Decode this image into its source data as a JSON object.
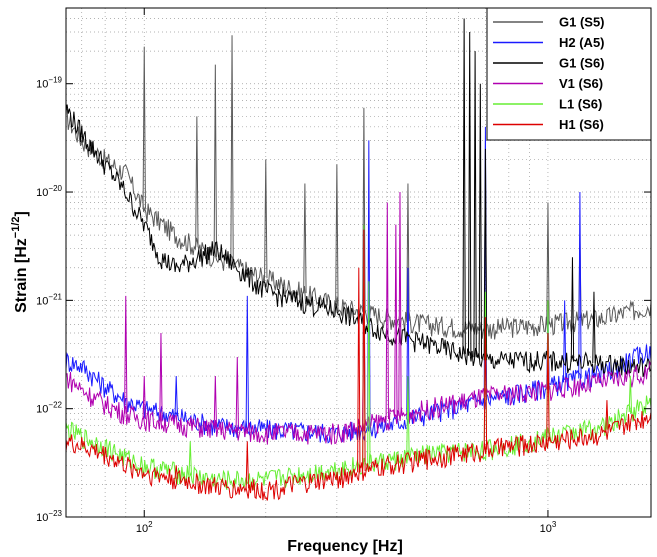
{
  "chart_data": {
    "type": "line",
    "xlabel": "Frequency [Hz]",
    "ylabel_main": "Strain [Hz",
    "ylabel_exp": "−1/2",
    "ylabel_end": "]",
    "xscale": "log",
    "yscale": "log",
    "xlim": [
      64,
      1800
    ],
    "ylim": [
      1e-23,
      5e-19
    ],
    "grid": true,
    "legend_position": "top-right",
    "x_ticks": [
      {
        "value": 100,
        "base": "10",
        "exp": "2"
      },
      {
        "value": 1000,
        "base": "10",
        "exp": "3"
      }
    ],
    "y_ticks": [
      {
        "value": 1e-23,
        "base": "10",
        "exp": "−23"
      },
      {
        "value": 1e-22,
        "base": "10",
        "exp": "−22"
      },
      {
        "value": 1e-21,
        "base": "10",
        "exp": "−21"
      },
      {
        "value": 1e-20,
        "base": "10",
        "exp": "−20"
      },
      {
        "value": 1e-19,
        "base": "10",
        "exp": "−19"
      }
    ],
    "series": [
      {
        "name": "G1 (S5)",
        "color": "#5a5a5a",
        "points": [
          [
            64,
            5e-20
          ],
          [
            70,
            3e-20
          ],
          [
            80,
            2e-20
          ],
          [
            90,
            1.5e-20
          ],
          [
            100,
            7e-21
          ],
          [
            120,
            4e-21
          ],
          [
            150,
            2.5e-21
          ],
          [
            200,
            1.6e-21
          ],
          [
            300,
            9e-22
          ],
          [
            400,
            7e-22
          ],
          [
            500,
            6e-22
          ],
          [
            700,
            5.5e-22
          ],
          [
            1000,
            6e-22
          ],
          [
            1400,
            7e-22
          ],
          [
            1800,
            9e-22
          ]
        ],
        "peaks": [
          [
            100,
            2.2e-19
          ],
          [
            135,
            5e-20
          ],
          [
            150,
            1.5e-19
          ],
          [
            165,
            2.8e-19
          ],
          [
            200,
            2e-20
          ],
          [
            250,
            1.2e-20
          ],
          [
            300,
            1.8e-20
          ],
          [
            350,
            6e-20
          ],
          [
            450,
            1.2e-20
          ],
          [
            700,
            3e-20
          ],
          [
            1000,
            8e-21
          ],
          [
            1200,
            4e-21
          ]
        ]
      },
      {
        "name": "H2 (A5)",
        "color": "#1a1aff",
        "points": [
          [
            64,
            2.8e-22
          ],
          [
            70,
            2.5e-22
          ],
          [
            80,
            1.6e-22
          ],
          [
            90,
            1.2e-22
          ],
          [
            100,
            1e-22
          ],
          [
            150,
            7e-23
          ],
          [
            200,
            6.5e-23
          ],
          [
            300,
            6e-23
          ],
          [
            400,
            7e-23
          ],
          [
            500,
            9e-23
          ],
          [
            700,
            1.2e-22
          ],
          [
            1000,
            1.6e-22
          ],
          [
            1400,
            2.2e-22
          ],
          [
            1800,
            3.5e-22
          ]
        ],
        "peaks": [
          [
            120,
            2e-22
          ],
          [
            180,
            1.1e-21
          ],
          [
            350,
            1.8e-21
          ],
          [
            360,
            3e-20
          ],
          [
            450,
            2e-21
          ],
          [
            700,
            4e-20
          ],
          [
            1000,
            8e-22
          ],
          [
            1100,
            1e-21
          ],
          [
            1200,
            1e-20
          ]
        ]
      },
      {
        "name": "G1 (S6)",
        "color": "#000000",
        "points": [
          [
            64,
            6e-20
          ],
          [
            70,
            3.5e-20
          ],
          [
            80,
            1.8e-20
          ],
          [
            90,
            1e-20
          ],
          [
            100,
            5e-21
          ],
          [
            110,
            2.5e-21
          ],
          [
            120,
            2e-21
          ],
          [
            150,
            3e-21
          ],
          [
            200,
            1.2e-21
          ],
          [
            300,
            8e-22
          ],
          [
            400,
            5e-22
          ],
          [
            500,
            4e-22
          ],
          [
            700,
            2.8e-22
          ],
          [
            1000,
            2.8e-22
          ],
          [
            1400,
            2.6e-22
          ],
          [
            1800,
            2.4e-22
          ]
        ],
        "peaks": [
          [
            620,
            4e-19
          ],
          [
            640,
            3e-19
          ],
          [
            660,
            2e-19
          ],
          [
            680,
            1e-19
          ],
          [
            700,
            2.5e-20
          ],
          [
            1150,
            2.5e-21
          ],
          [
            1300,
            1.2e-21
          ]
        ]
      },
      {
        "name": "V1 (S6)",
        "color": "#b000b0",
        "points": [
          [
            64,
            2e-22
          ],
          [
            70,
            1.5e-22
          ],
          [
            80,
            1.1e-22
          ],
          [
            90,
            9e-23
          ],
          [
            100,
            8e-23
          ],
          [
            150,
            6.5e-23
          ],
          [
            200,
            6e-23
          ],
          [
            300,
            6e-23
          ],
          [
            400,
            8e-23
          ],
          [
            500,
            1e-22
          ],
          [
            700,
            1.3e-22
          ],
          [
            1000,
            1.5e-22
          ],
          [
            1400,
            1.8e-22
          ],
          [
            1800,
            2.2e-22
          ]
        ],
        "peaks": [
          [
            90,
            1.1e-21
          ],
          [
            100,
            2e-22
          ],
          [
            110,
            5e-22
          ],
          [
            150,
            2e-22
          ],
          [
            170,
            3e-22
          ],
          [
            350,
            5e-21
          ],
          [
            400,
            8e-21
          ],
          [
            420,
            5e-21
          ],
          [
            430,
            1e-20
          ],
          [
            1000,
            5e-22
          ]
        ]
      },
      {
        "name": "L1 (S6)",
        "color": "#66ee33",
        "points": [
          [
            64,
            6.5e-23
          ],
          [
            70,
            5.5e-23
          ],
          [
            80,
            4.5e-23
          ],
          [
            90,
            3.5e-23
          ],
          [
            100,
            3e-23
          ],
          [
            150,
            2.2e-23
          ],
          [
            200,
            2.2e-23
          ],
          [
            300,
            2.8e-23
          ],
          [
            400,
            3.3e-23
          ],
          [
            500,
            3.8e-23
          ],
          [
            700,
            4.2e-23
          ],
          [
            1000,
            5.5e-23
          ],
          [
            1400,
            7e-23
          ],
          [
            1800,
            1.2e-22
          ]
        ],
        "peaks": [
          [
            130,
            5e-23
          ],
          [
            350,
            5e-21
          ],
          [
            360,
            1.5e-21
          ],
          [
            450,
            2e-22
          ],
          [
            700,
            1.2e-21
          ],
          [
            1000,
            1e-21
          ],
          [
            1600,
            2e-22
          ]
        ]
      },
      {
        "name": "H1 (S6)",
        "color": "#dd0000",
        "points": [
          [
            64,
            5e-23
          ],
          [
            70,
            4.5e-23
          ],
          [
            80,
            3.8e-23
          ],
          [
            90,
            3e-23
          ],
          [
            100,
            2.6e-23
          ],
          [
            150,
            1.9e-23
          ],
          [
            200,
            1.8e-23
          ],
          [
            300,
            2.3e-23
          ],
          [
            400,
            3e-23
          ],
          [
            500,
            3.5e-23
          ],
          [
            700,
            4.2e-23
          ],
          [
            1000,
            5e-23
          ],
          [
            1400,
            6e-23
          ],
          [
            1800,
            9e-23
          ]
        ],
        "peaks": [
          [
            120,
            3e-23
          ],
          [
            180,
            5e-23
          ],
          [
            340,
            2e-21
          ],
          [
            350,
            4.5e-21
          ],
          [
            700,
            7e-22
          ],
          [
            1000,
            5e-22
          ],
          [
            1400,
            1.2e-22
          ]
        ]
      }
    ]
  }
}
